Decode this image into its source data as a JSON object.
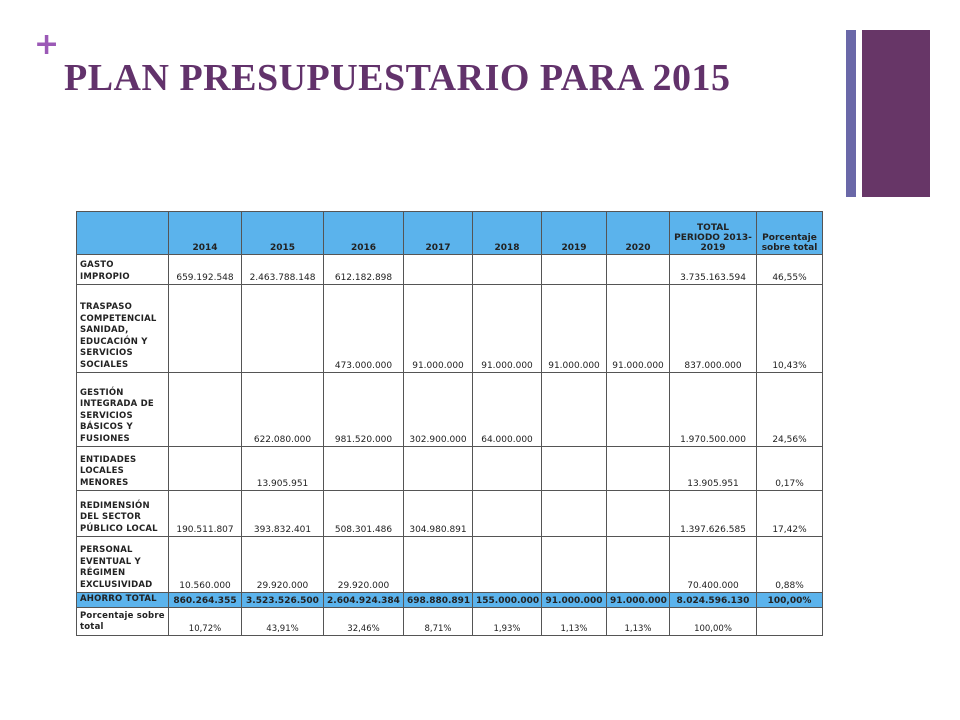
{
  "slide": {
    "plus_icon": "+",
    "title": "PLAN PRESUPUESTARIO PARA 2015",
    "accent_colors": {
      "title": "#62326b",
      "bar_thin": "#6a68a8",
      "bar_thick": "#673667",
      "table_header": "#5bb3ec"
    }
  },
  "table": {
    "headers": [
      "",
      "2014",
      "2015",
      "2016",
      "2017",
      "2018",
      "2019",
      "2020",
      "TOTAL PERIODO 2013-2019",
      "Porcentaje sobre total"
    ],
    "rows": [
      {
        "label": "GASTO IMPROPIO",
        "cells": [
          "659.192.548",
          "2.463.788.148",
          "612.182.898",
          "",
          "",
          "",
          "",
          "3.735.163.594",
          "46,55%"
        ]
      },
      {
        "label": "TRASPASO COMPETENCIAL SANIDAD, EDUCACIÓN Y SERVICIOS SOCIALES",
        "cells": [
          "",
          "",
          "473.000.000",
          "91.000.000",
          "91.000.000",
          "91.000.000",
          "91.000.000",
          "837.000.000",
          "10,43%"
        ]
      },
      {
        "label": "GESTIÓN INTEGRADA DE SERVICIOS BÁSICOS Y FUSIONES",
        "cells": [
          "",
          "622.080.000",
          "981.520.000",
          "302.900.000",
          "64.000.000",
          "",
          "",
          "1.970.500.000",
          "24,56%"
        ]
      },
      {
        "label": "ENTIDADES LOCALES MENORES",
        "cells": [
          "",
          "13.905.951",
          "",
          "",
          "",
          "",
          "",
          "13.905.951",
          "0,17%"
        ]
      },
      {
        "label": "REDIMENSIÓN DEL SECTOR PÚBLICO LOCAL",
        "cells": [
          "190.511.807",
          "393.832.401",
          "508.301.486",
          "304.980.891",
          "",
          "",
          "",
          "1.397.626.585",
          "17,42%"
        ]
      },
      {
        "label": "PERSONAL EVENTUAL Y RÉGIMEN EXCLUSIVIDAD",
        "cells": [
          "10.560.000",
          "29.920.000",
          "29.920.000",
          "",
          "",
          "",
          "",
          "70.400.000",
          "0,88%"
        ]
      }
    ],
    "total": {
      "label": "AHORRO TOTAL",
      "cells": [
        "860.264.355",
        "3.523.526.500",
        "2.604.924.384",
        "698.880.891",
        "155.000.000",
        "91.000.000",
        "91.000.000",
        "8.024.596.130",
        "100,00%"
      ]
    },
    "percent": {
      "label": "Porcentaje sobre total",
      "cells": [
        "10,72%",
        "43,91%",
        "32,46%",
        "8,71%",
        "1,93%",
        "1,13%",
        "1,13%",
        "100,00%",
        ""
      ]
    }
  }
}
